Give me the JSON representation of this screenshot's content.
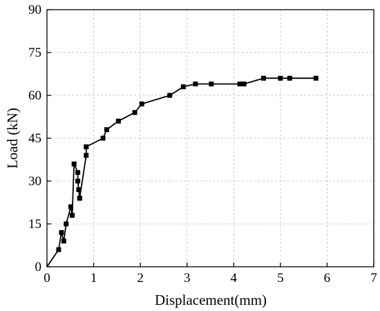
{
  "chart_data": {
    "type": "line",
    "title": "",
    "xlabel": "Displacement(mm)",
    "ylabel": "Load (kN)",
    "xlim": [
      0,
      7
    ],
    "ylim": [
      0,
      90
    ],
    "xticks": [
      0,
      1,
      2,
      3,
      4,
      5,
      6,
      7
    ],
    "yticks": [
      0,
      15,
      30,
      45,
      60,
      75,
      90
    ],
    "xtick_labels": [
      "0",
      "1",
      "2",
      "3",
      "4",
      "5",
      "6",
      "7"
    ],
    "ytick_labels": [
      "0",
      "15",
      "30",
      "45",
      "60",
      "75",
      "90"
    ],
    "grid": true,
    "legend": "none",
    "marker": "square",
    "color": "#000000",
    "series": [
      {
        "x": [
          0,
          0.25,
          0.31,
          0.36,
          0.41,
          0.51,
          0.54,
          0.58,
          0.66,
          0.66,
          0.68,
          0.7,
          0.7,
          0.84,
          0.84,
          1.2,
          1.28,
          1.53,
          1.88,
          2.03,
          2.63,
          2.92,
          3.18,
          3.52,
          4.13,
          4.22,
          4.64,
          5.0,
          5.2,
          5.76
        ],
        "y": [
          0,
          6,
          12,
          9,
          15,
          21,
          18,
          36,
          33,
          30,
          27,
          24,
          24,
          39,
          42,
          45,
          48,
          51,
          54,
          57,
          60,
          63,
          64,
          64,
          64,
          64,
          66,
          66,
          66,
          66
        ]
      }
    ]
  }
}
